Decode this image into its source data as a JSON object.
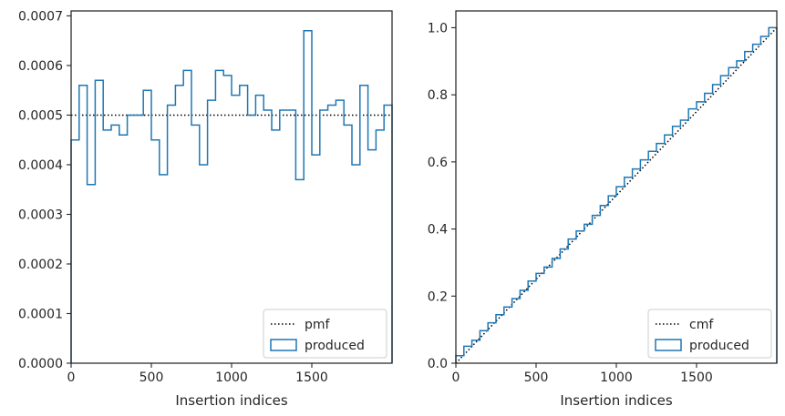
{
  "colors": {
    "produced": "#1f77b4",
    "reference": "#000000",
    "axes": "#262626",
    "legend_border": "#cccccc"
  },
  "chart_data": [
    {
      "type": "line",
      "title": "",
      "xlabel": "Insertion indices",
      "ylabel": "",
      "xlim": [
        0,
        2000
      ],
      "ylim": [
        0,
        0.00071
      ],
      "xticks": [
        0,
        500,
        1000,
        1500
      ],
      "xtick_labels": [
        "0",
        "500",
        "1000",
        "1500"
      ],
      "yticks": [
        0,
        0.0001,
        0.0002,
        0.0003,
        0.0004,
        0.0005,
        0.0006,
        0.0007
      ],
      "ytick_labels": [
        "0.0000",
        "0.0001",
        "0.0002",
        "0.0003",
        "0.0004",
        "0.0005",
        "0.0006",
        "0.0007"
      ],
      "grid": false,
      "legend": "lower right",
      "series": [
        {
          "name": "pmf",
          "style": "dotted",
          "x": [
            0,
            2000
          ],
          "y": [
            0.0005,
            0.0005
          ]
        },
        {
          "name": "produced",
          "style": "step",
          "bin_edges": [
            0,
            50,
            100,
            150,
            200,
            250,
            300,
            350,
            400,
            450,
            500,
            550,
            600,
            650,
            700,
            750,
            800,
            850,
            900,
            950,
            1000,
            1050,
            1100,
            1150,
            1200,
            1250,
            1300,
            1350,
            1400,
            1450,
            1500,
            1550,
            1600,
            1650,
            1700,
            1750,
            1800,
            1850,
            1900,
            1950,
            2000
          ],
          "values": [
            0.00045,
            0.00056,
            0.00036,
            0.00057,
            0.00047,
            0.00048,
            0.00046,
            0.0005,
            0.0005,
            0.00055,
            0.00045,
            0.00038,
            0.00052,
            0.00056,
            0.00059,
            0.00048,
            0.0004,
            0.00053,
            0.00059,
            0.00058,
            0.00054,
            0.00056,
            0.0005,
            0.00054,
            0.00051,
            0.00047,
            0.00051,
            0.00051,
            0.00037,
            0.00067,
            0.00042,
            0.00051,
            0.00052,
            0.00053,
            0.00048,
            0.0004,
            0.00056,
            0.00043,
            0.00047,
            0.00052
          ]
        }
      ]
    },
    {
      "type": "line",
      "title": "",
      "xlabel": "Insertion indices",
      "ylabel": "",
      "xlim": [
        0,
        2000
      ],
      "ylim": [
        0,
        1.05
      ],
      "xticks": [
        0,
        500,
        1000,
        1500
      ],
      "xtick_labels": [
        "0",
        "500",
        "1000",
        "1500"
      ],
      "yticks": [
        0,
        0.2,
        0.4,
        0.6,
        0.8,
        1.0
      ],
      "ytick_labels": [
        "0.0",
        "0.2",
        "0.4",
        "0.6",
        "0.8",
        "1.0"
      ],
      "grid": false,
      "legend": "lower right",
      "series": [
        {
          "name": "cmf",
          "style": "dotted",
          "x": [
            0,
            2000
          ],
          "y": [
            0,
            1
          ]
        },
        {
          "name": "produced",
          "style": "step",
          "bin_edges": [
            0,
            50,
            100,
            150,
            200,
            250,
            300,
            350,
            400,
            450,
            500,
            550,
            600,
            650,
            700,
            750,
            800,
            850,
            900,
            950,
            1000,
            1050,
            1100,
            1150,
            1200,
            1250,
            1300,
            1350,
            1400,
            1450,
            1500,
            1550,
            1600,
            1650,
            1700,
            1750,
            1800,
            1850,
            1900,
            1950,
            2000
          ],
          "values": [
            0.0225,
            0.0505,
            0.0685,
            0.097,
            0.1205,
            0.1445,
            0.1675,
            0.1925,
            0.2175,
            0.245,
            0.2675,
            0.2865,
            0.3125,
            0.3405,
            0.37,
            0.394,
            0.414,
            0.4405,
            0.47,
            0.499,
            0.526,
            0.554,
            0.579,
            0.606,
            0.6315,
            0.655,
            0.6805,
            0.706,
            0.7245,
            0.758,
            0.779,
            0.8045,
            0.8305,
            0.857,
            0.881,
            0.901,
            0.929,
            0.9505,
            0.974,
            1.0
          ]
        }
      ]
    }
  ]
}
